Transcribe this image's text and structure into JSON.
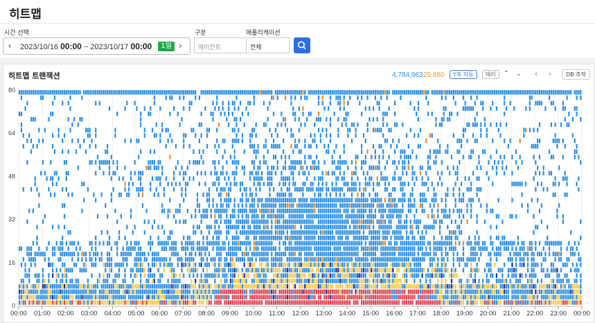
{
  "page": {
    "title": "히트맵"
  },
  "filters": {
    "time_label": "시간 선택",
    "start_date": "2023/10/16",
    "start_time": "00:00",
    "separator": "~",
    "end_date": "2023/10/17",
    "end_time": "00:00",
    "duration_badge": "1일",
    "type_label": "구분",
    "agent_placeholder": "에이전트",
    "app_label": "애플리케이션",
    "app_value": "전체"
  },
  "panel": {
    "title": "히트맵 트랜잭션",
    "count_normal": "4,784,963",
    "count_error": "25,880",
    "y_auto_button": "Y축 자동",
    "error_button": "에러",
    "db_button": "DB 추적"
  },
  "colors": {
    "blue": "#2b8fe6",
    "yellow": "#f9c94a",
    "orange": "#f08a24",
    "red": "#e24050",
    "navy": "#1f2f9e",
    "accent": "#2d6fe0",
    "badge": "#1faa4a"
  },
  "icons": [
    "chevron-left-icon",
    "chevron-right-icon",
    "search-icon",
    "chevron-up-icon",
    "chevron-down-icon"
  ],
  "chart_data": {
    "type": "heatmap",
    "title": "히트맵 트랜잭션",
    "x_ticks": [
      "00:00",
      "01:00",
      "02:00",
      "03:00",
      "04:00",
      "05:00",
      "06:00",
      "07:00",
      "08:00",
      "09:00",
      "10:00",
      "11:00",
      "12:00",
      "13:00",
      "14:00",
      "15:00",
      "16:00",
      "17:00",
      "18:00",
      "19:00",
      "20:00",
      "21:00",
      "22:00",
      "23:00",
      "00:00"
    ],
    "y_ticks": [
      "0",
      "16",
      "32",
      "48",
      "64",
      "80"
    ],
    "ylim": [
      0,
      80
    ],
    "xlim": [
      "00:00",
      "24:00"
    ],
    "columns_per_hour": 12,
    "rows": 40,
    "legend": {
      "count_normal": "4,784,963",
      "count_error": "25,880"
    },
    "grid": true
  }
}
